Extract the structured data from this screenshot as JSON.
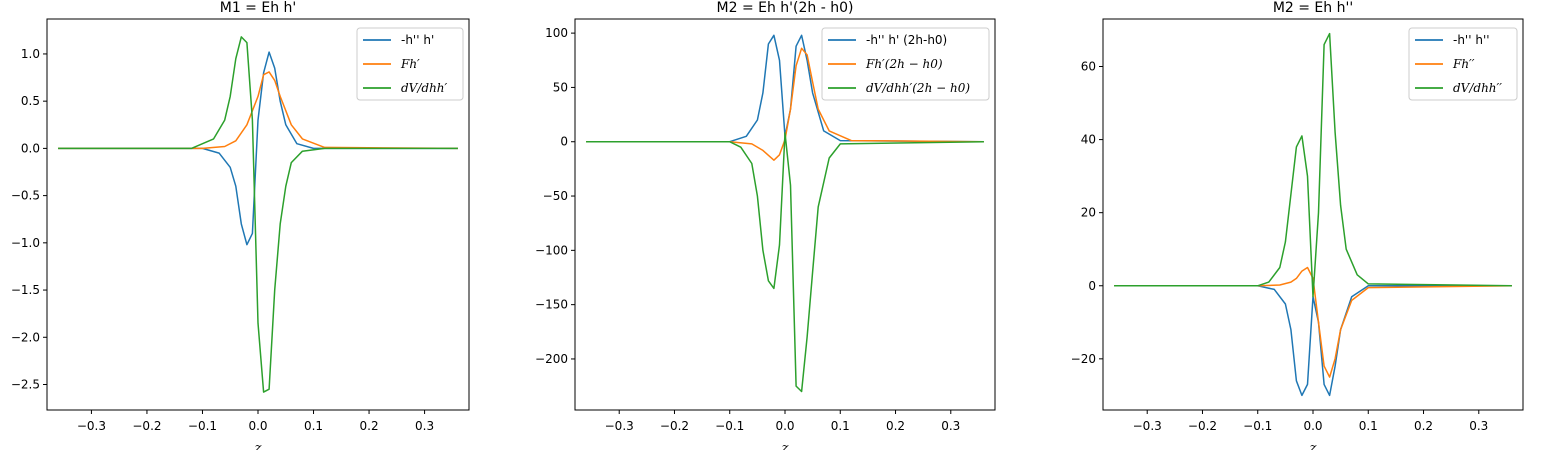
{
  "colors": {
    "blue": "#1f77b4",
    "orange": "#ff7f0e",
    "green": "#2ca02c"
  },
  "chart_data": [
    {
      "type": "line",
      "title": "M1 = Eh h'",
      "xlabel": "z",
      "ylabel": "",
      "xlim": [
        -0.38,
        0.38
      ],
      "ylim": [
        -2.77,
        1.37
      ],
      "xticks": [
        -0.3,
        -0.2,
        -0.1,
        0.0,
        0.1,
        0.2,
        0.3
      ],
      "xtick_labels": [
        "−0.3",
        "−0.2",
        "−0.1",
        "0.0",
        "0.1",
        "0.2",
        "0.3"
      ],
      "yticks": [
        1.0,
        0.5,
        0.0,
        -0.5,
        -1.0,
        -1.5,
        -2.0,
        -2.5
      ],
      "ytick_labels": [
        "1.0",
        "0.5",
        "0.0",
        "−0.5",
        "−1.0",
        "−1.5",
        "−2.0",
        "−2.5"
      ],
      "legend_position": "top-right",
      "series": [
        {
          "name": "-h'' h'",
          "x": [
            -0.36,
            -0.1,
            -0.07,
            -0.05,
            -0.04,
            -0.03,
            -0.02,
            -0.01,
            0.0,
            0.01,
            0.02,
            0.03,
            0.04,
            0.05,
            0.07,
            0.1,
            0.36
          ],
          "y": [
            0,
            0,
            -0.05,
            -0.2,
            -0.4,
            -0.8,
            -1.02,
            -0.9,
            0.3,
            0.8,
            1.02,
            0.85,
            0.5,
            0.25,
            0.05,
            0,
            0
          ]
        },
        {
          "name": "Fh'",
          "x": [
            -0.36,
            -0.1,
            -0.06,
            -0.04,
            -0.02,
            0.0,
            0.01,
            0.02,
            0.03,
            0.04,
            0.06,
            0.08,
            0.12,
            0.36
          ],
          "y": [
            0,
            0,
            0.02,
            0.08,
            0.25,
            0.55,
            0.78,
            0.81,
            0.72,
            0.55,
            0.25,
            0.1,
            0.01,
            0
          ]
        },
        {
          "name": "dV/dhh'",
          "x": [
            -0.36,
            -0.12,
            -0.08,
            -0.06,
            -0.05,
            -0.04,
            -0.03,
            -0.02,
            -0.01,
            0.0,
            0.01,
            0.02,
            0.03,
            0.04,
            0.05,
            0.06,
            0.08,
            0.12,
            0.36
          ],
          "y": [
            0,
            0,
            0.1,
            0.3,
            0.55,
            0.95,
            1.18,
            1.12,
            0.3,
            -1.85,
            -2.58,
            -2.55,
            -1.5,
            -0.8,
            -0.4,
            -0.15,
            -0.03,
            0,
            0
          ]
        }
      ]
    },
    {
      "type": "line",
      "title": "M2 = Eh h'(2h - h0)",
      "xlabel": "z",
      "ylabel": "",
      "xlim": [
        -0.38,
        0.38
      ],
      "ylim": [
        -247,
        113
      ],
      "xticks": [
        -0.3,
        -0.2,
        -0.1,
        0.0,
        0.1,
        0.2,
        0.3
      ],
      "xtick_labels": [
        "−0.3",
        "−0.2",
        "−0.1",
        "0.0",
        "0.1",
        "0.2",
        "0.3"
      ],
      "yticks": [
        100,
        50,
        0,
        -50,
        -100,
        -150,
        -200
      ],
      "ytick_labels": [
        "100",
        "50",
        "0",
        "−50",
        "−100",
        "−150",
        "−200"
      ],
      "legend_position": "top-right",
      "series": [
        {
          "name": "-h'' h' (2h-h0)",
          "x": [
            -0.36,
            -0.1,
            -0.07,
            -0.05,
            -0.04,
            -0.03,
            -0.02,
            -0.01,
            0.0,
            0.01,
            0.02,
            0.03,
            0.04,
            0.05,
            0.07,
            0.1,
            0.36
          ],
          "y": [
            0,
            0,
            5,
            20,
            45,
            90,
            98,
            75,
            5,
            30,
            88,
            98,
            75,
            45,
            10,
            1,
            0
          ]
        },
        {
          "name": "Fh'(2h-h0)",
          "x": [
            -0.36,
            -0.1,
            -0.06,
            -0.04,
            -0.02,
            -0.01,
            0.0,
            0.01,
            0.02,
            0.03,
            0.04,
            0.05,
            0.06,
            0.08,
            0.12,
            0.36
          ],
          "y": [
            0,
            0,
            -2,
            -8,
            -17,
            -12,
            2,
            30,
            70,
            86,
            80,
            55,
            30,
            10,
            1,
            0
          ]
        },
        {
          "name": "dV/dhh'(2h-h0)",
          "x": [
            -0.36,
            -0.1,
            -0.08,
            -0.06,
            -0.05,
            -0.04,
            -0.03,
            -0.02,
            -0.01,
            0.0,
            0.01,
            0.02,
            0.03,
            0.04,
            0.05,
            0.06,
            0.08,
            0.1,
            0.36
          ],
          "y": [
            0,
            0,
            -5,
            -20,
            -50,
            -100,
            -128,
            -135,
            -95,
            8,
            -40,
            -225,
            -230,
            -180,
            -120,
            -60,
            -15,
            -2,
            0
          ]
        }
      ]
    },
    {
      "type": "line",
      "title": "M2 = Eh h''",
      "xlabel": "z",
      "ylabel": "",
      "xlim": [
        -0.38,
        0.38
      ],
      "ylim": [
        -34,
        73
      ],
      "xticks": [
        -0.3,
        -0.2,
        -0.1,
        0.0,
        0.1,
        0.2,
        0.3
      ],
      "xtick_labels": [
        "−0.3",
        "−0.2",
        "−0.1",
        "0.0",
        "0.1",
        "0.2",
        "0.3"
      ],
      "yticks": [
        60,
        40,
        20,
        0,
        -20
      ],
      "ytick_labels": [
        "60",
        "40",
        "20",
        "0",
        "−20"
      ],
      "legend_position": "top-right",
      "series": [
        {
          "name": "-h'' h''",
          "x": [
            -0.36,
            -0.1,
            -0.07,
            -0.05,
            -0.04,
            -0.03,
            -0.02,
            -0.01,
            0.0,
            0.01,
            0.02,
            0.03,
            0.04,
            0.05,
            0.07,
            0.1,
            0.36
          ],
          "y": [
            0,
            0,
            -1,
            -5,
            -12,
            -26,
            -30,
            -27,
            -3,
            -10,
            -27,
            -30,
            -22,
            -12,
            -3,
            0,
            0
          ]
        },
        {
          "name": "Fh''",
          "x": [
            -0.36,
            -0.1,
            -0.06,
            -0.04,
            -0.03,
            -0.02,
            -0.01,
            0.0,
            0.01,
            0.02,
            0.03,
            0.04,
            0.05,
            0.07,
            0.1,
            0.36
          ],
          "y": [
            0,
            0,
            0.2,
            1,
            2,
            4,
            5,
            2,
            -10,
            -22,
            -25,
            -20,
            -12,
            -4,
            -0.5,
            0
          ]
        },
        {
          "name": "dV/dhh''",
          "x": [
            -0.36,
            -0.1,
            -0.08,
            -0.06,
            -0.05,
            -0.04,
            -0.03,
            -0.02,
            -0.01,
            0.0,
            0.01,
            0.02,
            0.03,
            0.04,
            0.05,
            0.06,
            0.08,
            0.1,
            0.36
          ],
          "y": [
            0,
            0,
            1,
            5,
            12,
            25,
            38,
            41,
            30,
            -3,
            20,
            66,
            69,
            42,
            22,
            10,
            3,
            0.5,
            0
          ]
        }
      ]
    }
  ],
  "legends": [
    [
      {
        "parts": [
          {
            "t": "-h'' h'",
            "i": false
          }
        ]
      },
      {
        "parts": [
          {
            "t": "Fh′",
            "i": true
          }
        ]
      },
      {
        "parts": [
          {
            "t": "dV/dhh′",
            "i": true
          }
        ]
      }
    ],
    [
      {
        "parts": [
          {
            "t": "-h'' h' (2h-h0)",
            "i": false
          }
        ]
      },
      {
        "parts": [
          {
            "t": "Fh′(2h − h0)",
            "i": true
          }
        ]
      },
      {
        "parts": [
          {
            "t": "dV/dhh′(2h − h0)",
            "i": true
          }
        ]
      }
    ],
    [
      {
        "parts": [
          {
            "t": "-h'' h''",
            "i": false
          }
        ]
      },
      {
        "parts": [
          {
            "t": "Fh′′",
            "i": true
          }
        ]
      },
      {
        "parts": [
          {
            "t": "dV/dhh′′",
            "i": true
          }
        ]
      }
    ]
  ]
}
